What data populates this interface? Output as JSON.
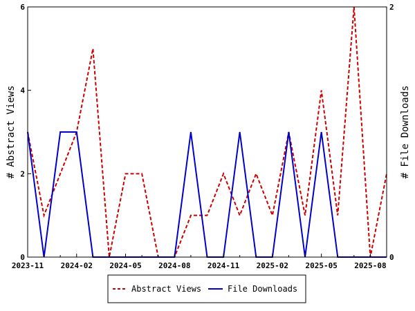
{
  "chart_data": {
    "type": "line",
    "title": "",
    "xlabel": "",
    "ylabel_left": "# Abstract Views",
    "ylabel_right": "# File Downloads",
    "x": [
      "2023-11",
      "2023-12",
      "2024-01",
      "2024-02",
      "2024-03",
      "2024-04",
      "2024-05",
      "2024-06",
      "2024-07",
      "2024-08",
      "2024-09",
      "2024-10",
      "2024-11",
      "2024-12",
      "2025-01",
      "2025-02",
      "2025-03",
      "2025-04",
      "2025-05",
      "2025-06",
      "2025-07",
      "2025-08",
      "2025-09"
    ],
    "x_tick_labels": [
      "2023-11",
      "2024-02",
      "2024-05",
      "2024-08",
      "2024-11",
      "2025-02",
      "2025-05",
      "2025-08"
    ],
    "ylim_left": [
      0,
      6
    ],
    "ylim_right": [
      0,
      2
    ],
    "y_ticks_left": [
      "0",
      "2",
      "4",
      "6"
    ],
    "y_ticks_right": [
      "0",
      "2"
    ],
    "series": [
      {
        "name": "Abstract Views",
        "axis": "left",
        "color": "#cc0000",
        "dash": "dashed",
        "values": [
          3,
          1,
          2,
          3,
          5,
          0,
          2,
          2,
          0,
          0,
          1,
          1,
          2,
          1,
          2,
          1,
          3,
          1,
          4,
          1,
          6,
          0,
          2
        ]
      },
      {
        "name": "File Downloads",
        "axis": "right",
        "color": "#0000cc",
        "dash": "solid",
        "values": [
          1,
          0,
          1,
          1,
          0,
          0,
          0,
          0,
          0,
          0,
          1,
          0,
          0,
          1,
          0,
          0,
          1,
          0,
          1,
          0,
          0,
          0,
          0
        ]
      }
    ],
    "legend_position": "bottom-center",
    "grid": false
  }
}
